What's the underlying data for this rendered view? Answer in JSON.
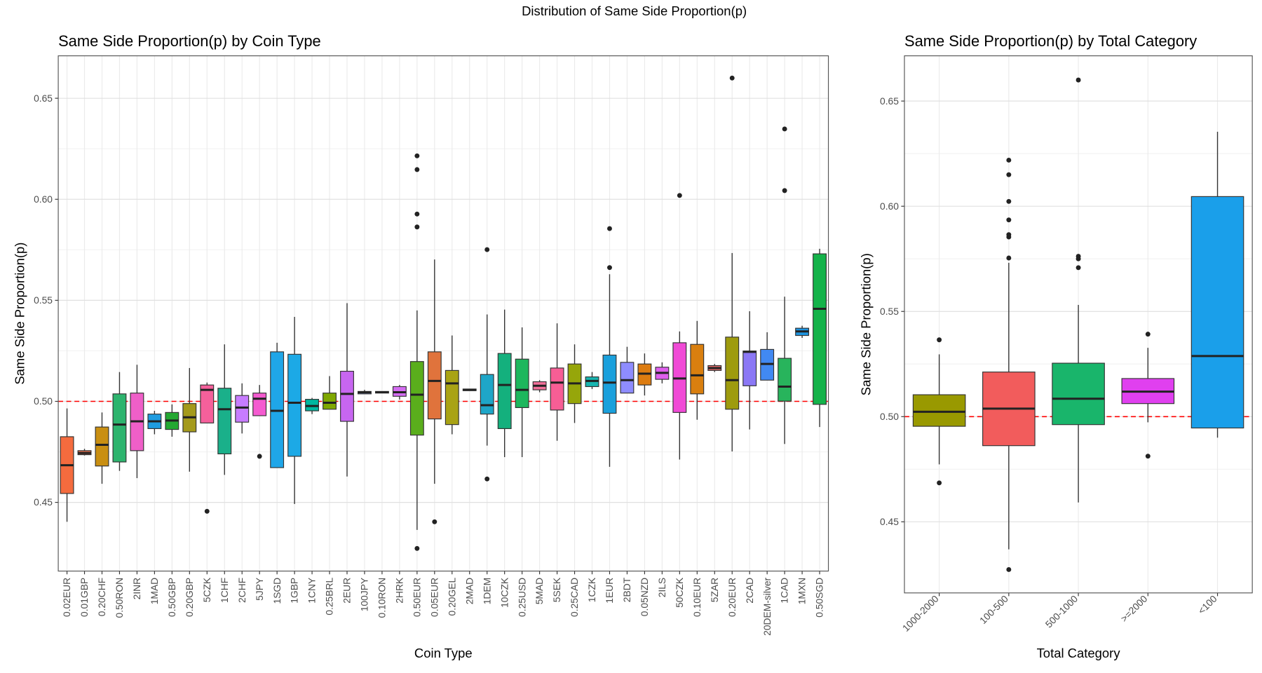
{
  "title": "Distribution of Same Side Proportion(p)",
  "chart_data": [
    {
      "type": "box",
      "title": "Same Side Proportion(p) by Coin Type",
      "xlabel": "Coin Type",
      "ylabel": "Same Side Proportion(p)",
      "ylim": [
        0.416,
        0.671
      ],
      "yticks": [
        0.45,
        {
          "value": 0.5,
          "label": "0.50"
        },
        0.55,
        {
          "value": 0.6,
          "label": "0.60"
        },
        0.65
      ],
      "grid": true,
      "hline": 0.5,
      "hline_color": "#ff0000",
      "categories": [
        "0.02EUR",
        "0.01GBP",
        "0.20CHF",
        "0.50RON",
        "2INR",
        "1MAD",
        "0.50GBP",
        "0.20GBP",
        "5CZK",
        "1CHF",
        "2CHF",
        "5JPY",
        "1SGD",
        "1GBP",
        "1CNY",
        "0.25BRL",
        "2EUR",
        "100JPY",
        "0.10RON",
        "2HRK",
        "0.50EUR",
        "0.05EUR",
        "0.20GEL",
        "2MAD",
        "1DEM",
        "10CZK",
        "0.25USD",
        "5MAD",
        "5SEK",
        "0.25CAD",
        "1CZK",
        "1EUR",
        "2BDT",
        "0.05NZD",
        "2ILS",
        "50CZK",
        "0.10EUR",
        "5ZAR",
        "0.20EUR",
        "2CAD",
        "20DEM-silver",
        "1CAD",
        "1MXN",
        "0.50SGD"
      ],
      "boxes": [
        {
          "color": "#f46b3e",
          "low": 0.4404,
          "q1": 0.4544,
          "median": 0.4684,
          "q3": 0.4825,
          "high": 0.4965,
          "outliers": []
        },
        {
          "color": "#e06a4a",
          "low": 0.4732,
          "q1": 0.4736,
          "median": 0.4744,
          "q3": 0.4756,
          "high": 0.4765,
          "outliers": []
        },
        {
          "color": "#c98f12",
          "low": 0.4592,
          "q1": 0.468,
          "median": 0.4785,
          "q3": 0.4873,
          "high": 0.4945,
          "outliers": []
        },
        {
          "color": "#2db46e",
          "low": 0.4656,
          "q1": 0.47,
          "median": 0.4885,
          "q3": 0.5037,
          "high": 0.5145,
          "outliers": []
        },
        {
          "color": "#ef5fc8",
          "low": 0.462,
          "q1": 0.4756,
          "median": 0.4901,
          "q3": 0.5041,
          "high": 0.5181,
          "outliers": []
        },
        {
          "color": "#1e9ce0",
          "low": 0.4837,
          "q1": 0.4865,
          "median": 0.4901,
          "q3": 0.4937,
          "high": 0.4953,
          "outliers": []
        },
        {
          "color": "#24a832",
          "low": 0.4825,
          "q1": 0.4861,
          "median": 0.4905,
          "q3": 0.4945,
          "high": 0.4985,
          "outliers": []
        },
        {
          "color": "#a49a1c",
          "low": 0.4652,
          "q1": 0.4849,
          "median": 0.4921,
          "q3": 0.4989,
          "high": 0.5165,
          "outliers": []
        },
        {
          "color": "#f5609b",
          "low": null,
          "q1": 0.4893,
          "median": 0.5057,
          "q3": 0.5081,
          "high": 0.5093,
          "outliers": [
            0.4456
          ]
        },
        {
          "color": "#1ab08a",
          "low": 0.4636,
          "q1": 0.474,
          "median": 0.4961,
          "q3": 0.5065,
          "high": 0.5282,
          "outliers": []
        },
        {
          "color": "#c77cff",
          "low": 0.4841,
          "q1": 0.4897,
          "median": 0.4969,
          "q3": 0.5029,
          "high": 0.5089,
          "outliers": []
        },
        {
          "color": "#f45bd0",
          "low": null,
          "q1": 0.4929,
          "median": 0.5013,
          "q3": 0.5041,
          "high": 0.5081,
          "outliers": [
            0.4728
          ]
        },
        {
          "color": "#1fa6e8",
          "low": null,
          "q1": 0.4672,
          "median": 0.4953,
          "q3": 0.5245,
          "high": 0.529,
          "outliers": []
        },
        {
          "color": "#1ca9e6",
          "low": 0.4492,
          "q1": 0.4728,
          "median": 0.4993,
          "q3": 0.5233,
          "high": 0.5418,
          "outliers": []
        },
        {
          "color": "#00b8a0",
          "low": 0.4937,
          "q1": 0.4953,
          "median": 0.4977,
          "q3": 0.501,
          "high": 0.5017,
          "outliers": []
        },
        {
          "color": "#7fa800",
          "low": null,
          "q1": 0.4961,
          "median": 0.4993,
          "q3": 0.5041,
          "high": 0.5125,
          "outliers": []
        },
        {
          "color": "#c766f0",
          "low": 0.4628,
          "q1": 0.4901,
          "median": 0.5037,
          "q3": 0.5149,
          "high": 0.5486,
          "outliers": []
        },
        {
          "color": "#7f9bd8",
          "low": null,
          "q1": 0.5037,
          "median": 0.5045,
          "q3": 0.5049,
          "high": 0.5057,
          "outliers": []
        },
        {
          "color": "#30b0a8",
          "low": null,
          "q1": 0.5041,
          "median": 0.5045,
          "q3": 0.5049,
          "high": null,
          "outliers": []
        },
        {
          "color": "#d46cf2",
          "low": 0.5009,
          "q1": 0.5025,
          "median": 0.5045,
          "q3": 0.5073,
          "high": 0.5081,
          "outliers": []
        },
        {
          "color": "#5aae1c",
          "low": 0.4364,
          "q1": 0.4833,
          "median": 0.5033,
          "q3": 0.5197,
          "high": 0.545,
          "outliers": [
            0.6215,
            0.6147,
            0.5927,
            0.5863,
            0.4272
          ]
        },
        {
          "color": "#e0733c",
          "low": 0.4592,
          "q1": 0.4913,
          "median": 0.5101,
          "q3": 0.5245,
          "high": 0.5702,
          "outliers": [
            0.4404
          ]
        },
        {
          "color": "#a9a315",
          "low": 0.4837,
          "q1": 0.4885,
          "median": 0.5089,
          "q3": 0.5153,
          "high": 0.5326,
          "outliers": []
        },
        {
          "color": "#b08b2a",
          "low": null,
          "q1": 0.5053,
          "median": 0.5057,
          "q3": 0.5061,
          "high": null,
          "outliers": []
        },
        {
          "color": "#1ea6c8",
          "low": 0.4781,
          "q1": 0.4937,
          "median": 0.4981,
          "q3": 0.5133,
          "high": 0.543,
          "outliers": [
            0.5751,
            0.4616
          ]
        },
        {
          "color": "#14b07d",
          "low": 0.4724,
          "q1": 0.4865,
          "median": 0.5081,
          "q3": 0.5237,
          "high": 0.5454,
          "outliers": []
        },
        {
          "color": "#1db75d",
          "low": 0.4724,
          "q1": 0.4969,
          "median": 0.5057,
          "q3": 0.5209,
          "high": 0.5366,
          "outliers": []
        },
        {
          "color": "#f2709a",
          "low": 0.5045,
          "q1": 0.5057,
          "median": 0.5077,
          "q3": 0.5097,
          "high": 0.5105,
          "outliers": []
        },
        {
          "color": "#f75e95",
          "low": 0.4805,
          "q1": 0.4957,
          "median": 0.5093,
          "q3": 0.5165,
          "high": 0.5386,
          "outliers": []
        },
        {
          "color": "#96a60a",
          "low": 0.4893,
          "q1": 0.4989,
          "median": 0.5089,
          "q3": 0.5185,
          "high": 0.5282,
          "outliers": []
        },
        {
          "color": "#18b5b0",
          "low": 0.5061,
          "q1": 0.5073,
          "median": 0.5101,
          "q3": 0.5121,
          "high": 0.5145,
          "outliers": []
        },
        {
          "color": "#1aa0dc",
          "low": 0.4676,
          "q1": 0.4941,
          "median": 0.5093,
          "q3": 0.5229,
          "high": 0.5629,
          "outliers": [
            0.5855,
            0.5662
          ]
        },
        {
          "color": "#8e8cff",
          "low": null,
          "q1": 0.5041,
          "median": 0.5105,
          "q3": 0.5193,
          "high": 0.527,
          "outliers": []
        },
        {
          "color": "#dd7c10",
          "low": 0.5029,
          "q1": 0.5081,
          "median": 0.5137,
          "q3": 0.5185,
          "high": 0.5237,
          "outliers": []
        },
        {
          "color": "#df5fee",
          "low": 0.5089,
          "q1": 0.5109,
          "median": 0.5141,
          "q3": 0.5169,
          "high": 0.5193,
          "outliers": []
        },
        {
          "color": "#f04ad6",
          "low": 0.4712,
          "q1": 0.4945,
          "median": 0.5113,
          "q3": 0.529,
          "high": 0.5346,
          "outliers": [
            0.6019
          ]
        },
        {
          "color": "#d97f0f",
          "low": 0.4909,
          "q1": 0.5037,
          "median": 0.5129,
          "q3": 0.5282,
          "high": 0.5398,
          "outliers": []
        },
        {
          "color": "#e76a6a",
          "low": 0.5145,
          "q1": 0.5153,
          "median": 0.5165,
          "q3": 0.5177,
          "high": 0.5185,
          "outliers": []
        },
        {
          "color": "#9e9b0e",
          "low": 0.4752,
          "q1": 0.4961,
          "median": 0.5105,
          "q3": 0.5318,
          "high": 0.5734,
          "outliers": [
            0.66
          ]
        },
        {
          "color": "#8b78f5",
          "low": 0.4861,
          "q1": 0.5077,
          "median": 0.5245,
          "q3": 0.5249,
          "high": 0.5446,
          "outliers": []
        },
        {
          "color": "#4189f2",
          "low": null,
          "q1": 0.5105,
          "median": 0.5185,
          "q3": 0.5257,
          "high": 0.5342,
          "outliers": []
        },
        {
          "color": "#28b45c",
          "low": 0.4789,
          "q1": 0.5001,
          "median": 0.5073,
          "q3": 0.5213,
          "high": 0.5518,
          "outliers": [
            0.6348,
            0.6043
          ]
        },
        {
          "color": "#1e94e0",
          "low": 0.5314,
          "q1": 0.5326,
          "median": 0.5346,
          "q3": 0.5362,
          "high": 0.5374,
          "outliers": []
        },
        {
          "color": "#14b34a",
          "low": 0.4873,
          "q1": 0.4985,
          "median": 0.5458,
          "q3": 0.573,
          "high": 0.5755,
          "outliers": []
        }
      ]
    },
    {
      "type": "box",
      "title": "Same Side Proportion(p) by Total Category",
      "xlabel": "Total Category",
      "ylabel": "Same Side Proportion(p)",
      "ylim": [
        0.4162,
        0.6715
      ],
      "yticks": [
        0.45,
        {
          "value": 0.5,
          "label": "0.50"
        },
        0.55,
        {
          "value": 0.6,
          "label": "0.60"
        },
        0.65
      ],
      "grid": true,
      "hline": 0.5,
      "hline_color": "#ff0000",
      "categories": [
        "1000-2000",
        "100-500",
        "500-1000",
        ">=2000",
        "<100"
      ],
      "boxes": [
        {
          "color": "#999900",
          "low": 0.4773,
          "q1": 0.4954,
          "median": 0.5023,
          "q3": 0.5104,
          "high": 0.5296,
          "outliers": [
            0.5365,
            0.4685
          ]
        },
        {
          "color": "#f25c5c",
          "low": 0.4369,
          "q1": 0.4862,
          "median": 0.5038,
          "q3": 0.5212,
          "high": 0.5731,
          "outliers": [
            0.6219,
            0.615,
            0.6023,
            0.5935,
            0.5865,
            0.5854,
            0.5754,
            0.4273
          ]
        },
        {
          "color": "#19b56b",
          "low": 0.4592,
          "q1": 0.4962,
          "median": 0.5085,
          "q3": 0.5254,
          "high": 0.5531,
          "outliers": [
            0.66,
            0.5762,
            0.575,
            0.5708
          ]
        },
        {
          "color": "#e040ef",
          "low": 0.4973,
          "q1": 0.5062,
          "median": 0.5119,
          "q3": 0.5181,
          "high": 0.5327,
          "outliers": [
            0.5392,
            0.4812
          ]
        },
        {
          "color": "#1a9fea",
          "low": 0.49,
          "q1": 0.4946,
          "median": 0.5288,
          "q3": 0.6046,
          "high": 0.6354,
          "outliers": []
        }
      ]
    }
  ]
}
